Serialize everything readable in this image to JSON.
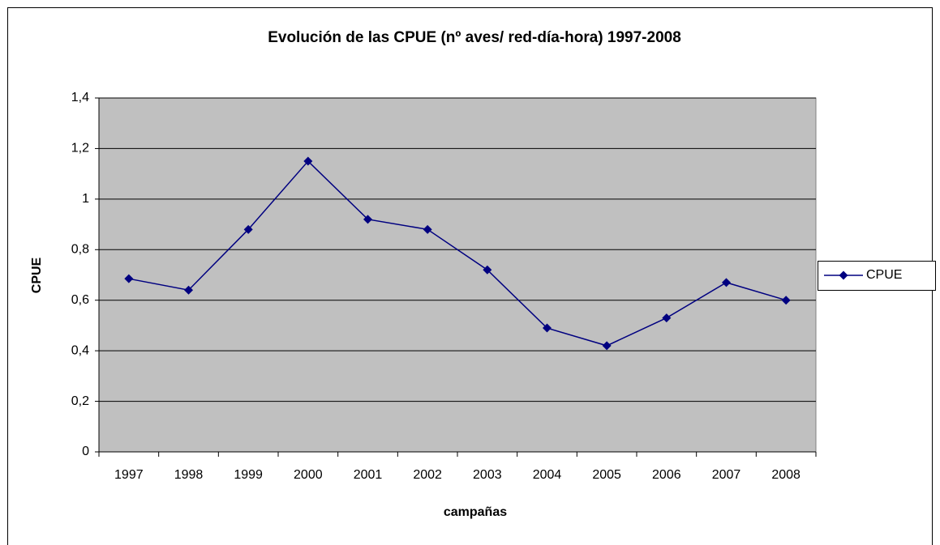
{
  "chart_data": {
    "type": "line",
    "title": "Evolución de las CPUE (nº aves/ red-día-hora) 1997-2008",
    "x_label": "campañas",
    "y_label": "CPUE",
    "categories": [
      "1997",
      "1998",
      "1999",
      "2000",
      "2001",
      "2002",
      "2003",
      "2004",
      "2005",
      "2006",
      "2007",
      "2008"
    ],
    "series": [
      {
        "name": "CPUE",
        "color": "#000080",
        "values": [
          0.685,
          0.64,
          0.88,
          1.15,
          0.92,
          0.88,
          0.72,
          0.49,
          0.42,
          0.53,
          0.67,
          0.6
        ]
      }
    ],
    "ylim": [
      0,
      1.4
    ],
    "yticks": [
      0,
      {
        "value": 0.2,
        "label": "0,2"
      },
      {
        "value": 0.4,
        "label": "0,4"
      },
      {
        "value": 0.6,
        "label": "0,6"
      },
      {
        "value": 0.8,
        "label": "0,8"
      },
      1,
      {
        "value": 1.2,
        "label": "1,2"
      },
      {
        "value": 1.4,
        "label": "1,4"
      }
    ],
    "grid": true,
    "legend": "right",
    "plot_background": "#c0c0c0"
  }
}
